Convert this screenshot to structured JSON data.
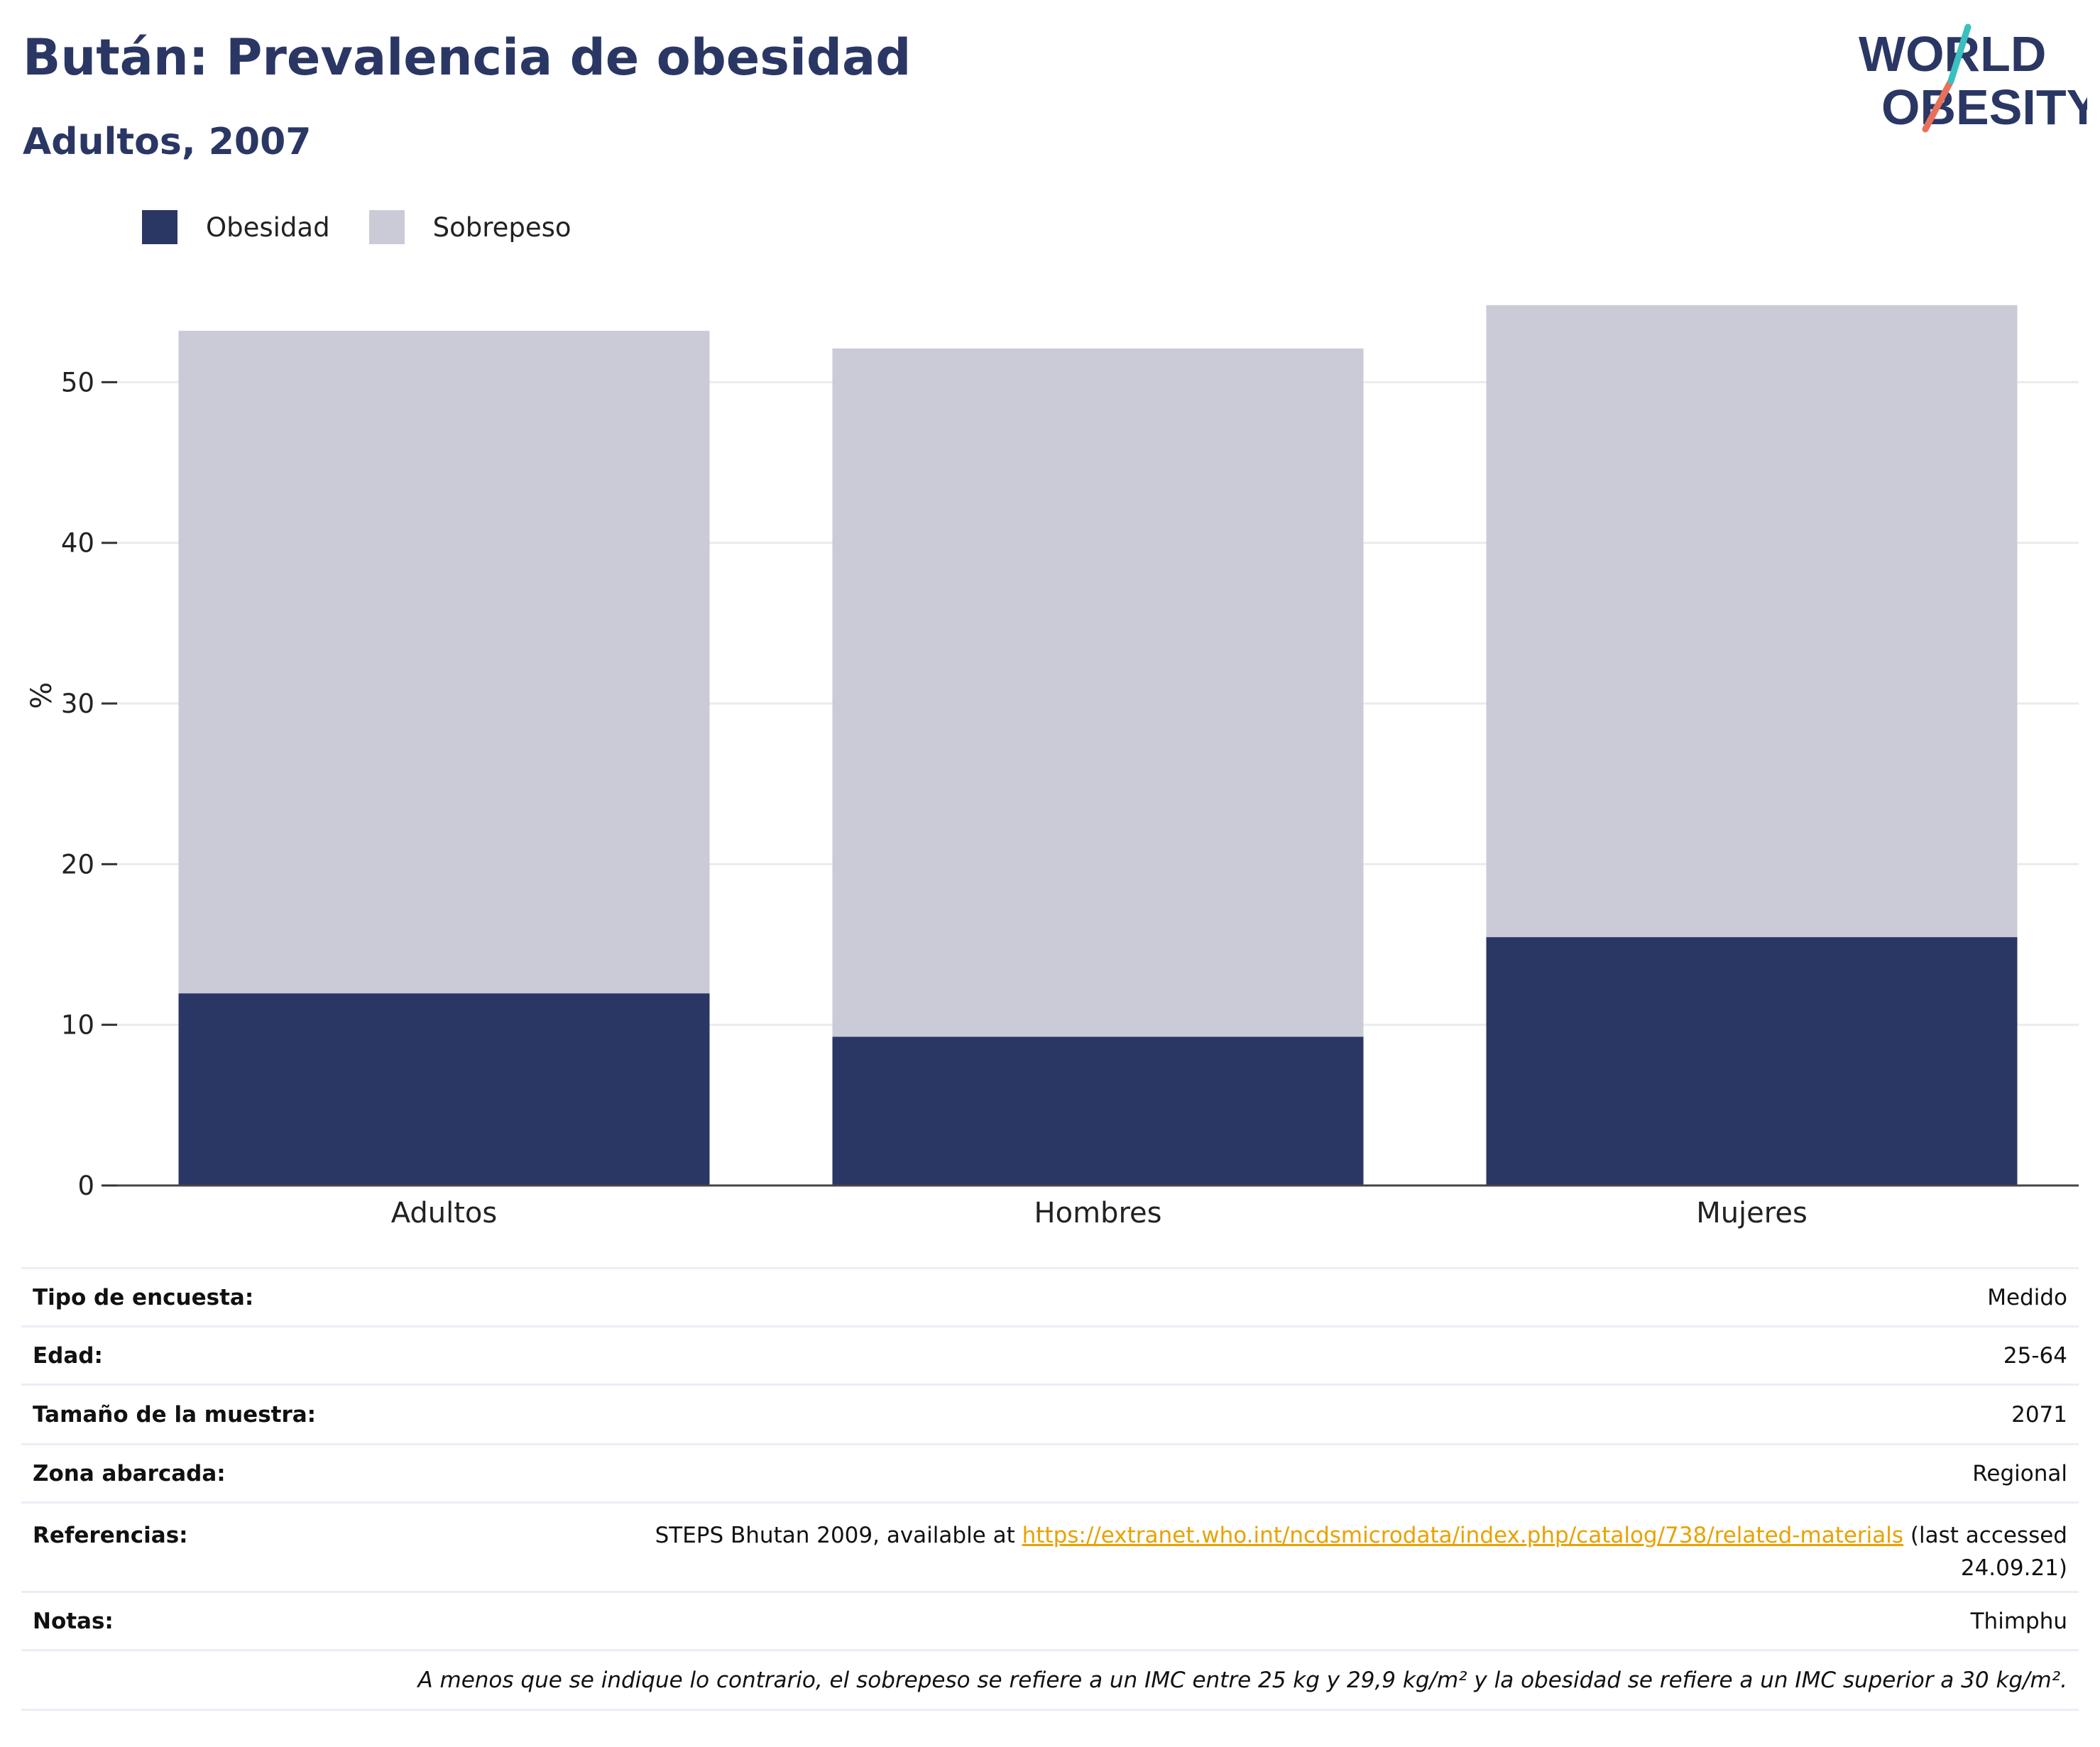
{
  "header": {
    "title": "Bután: Prevalencia de obesidad",
    "subtitle": "Adultos, 2007",
    "logo": {
      "line1": "WORLD",
      "line2": "OBESITY"
    }
  },
  "legend": [
    {
      "label": "Obesidad",
      "color": "#2a3764"
    },
    {
      "label": "Sobrepeso",
      "color": "#cacbd7"
    }
  ],
  "chart_data": {
    "type": "bar",
    "stacked": true,
    "categories": [
      "Adultos",
      "Hombres",
      "Mujeres"
    ],
    "series": [
      {
        "name": "Obesidad",
        "values": [
          12.0,
          9.3,
          15.5
        ],
        "color": "#2a3764"
      },
      {
        "name": "Sobrepeso",
        "values": [
          41.2,
          42.8,
          39.3
        ],
        "color": "#cacbd7"
      }
    ],
    "ylabel": "%",
    "ylim": [
      0,
      57
    ],
    "yticks": [
      0,
      10,
      20,
      30,
      40,
      50
    ],
    "grid": true,
    "legend_position": "top-left"
  },
  "info": {
    "survey_type": {
      "label": "Tipo de encuesta:",
      "value": "Medido"
    },
    "age": {
      "label": "Edad:",
      "value": "25-64"
    },
    "sample_size": {
      "label": "Tamaño de la muestra:",
      "value": "2071"
    },
    "area": {
      "label": "Zona abarcada:",
      "value": "Regional"
    },
    "references": {
      "label": "Referencias:",
      "text_before": "STEPS Bhutan 2009, available at ",
      "link": "https://extranet.who.int/ncdsmicrodata/index.php/catalog/738/related-materials",
      "text_after_line1": " (last accessed",
      "text_after_line2": "24.09.21)"
    },
    "notes": {
      "label": "Notas:",
      "value": "Thimphu"
    },
    "footnote": "A menos que se indique lo contrario, el sobrepeso se refiere a un IMC entre 25 kg y 29,9 kg/m² y la obesidad se refiere a un IMC superior a 30 kg/m²."
  }
}
